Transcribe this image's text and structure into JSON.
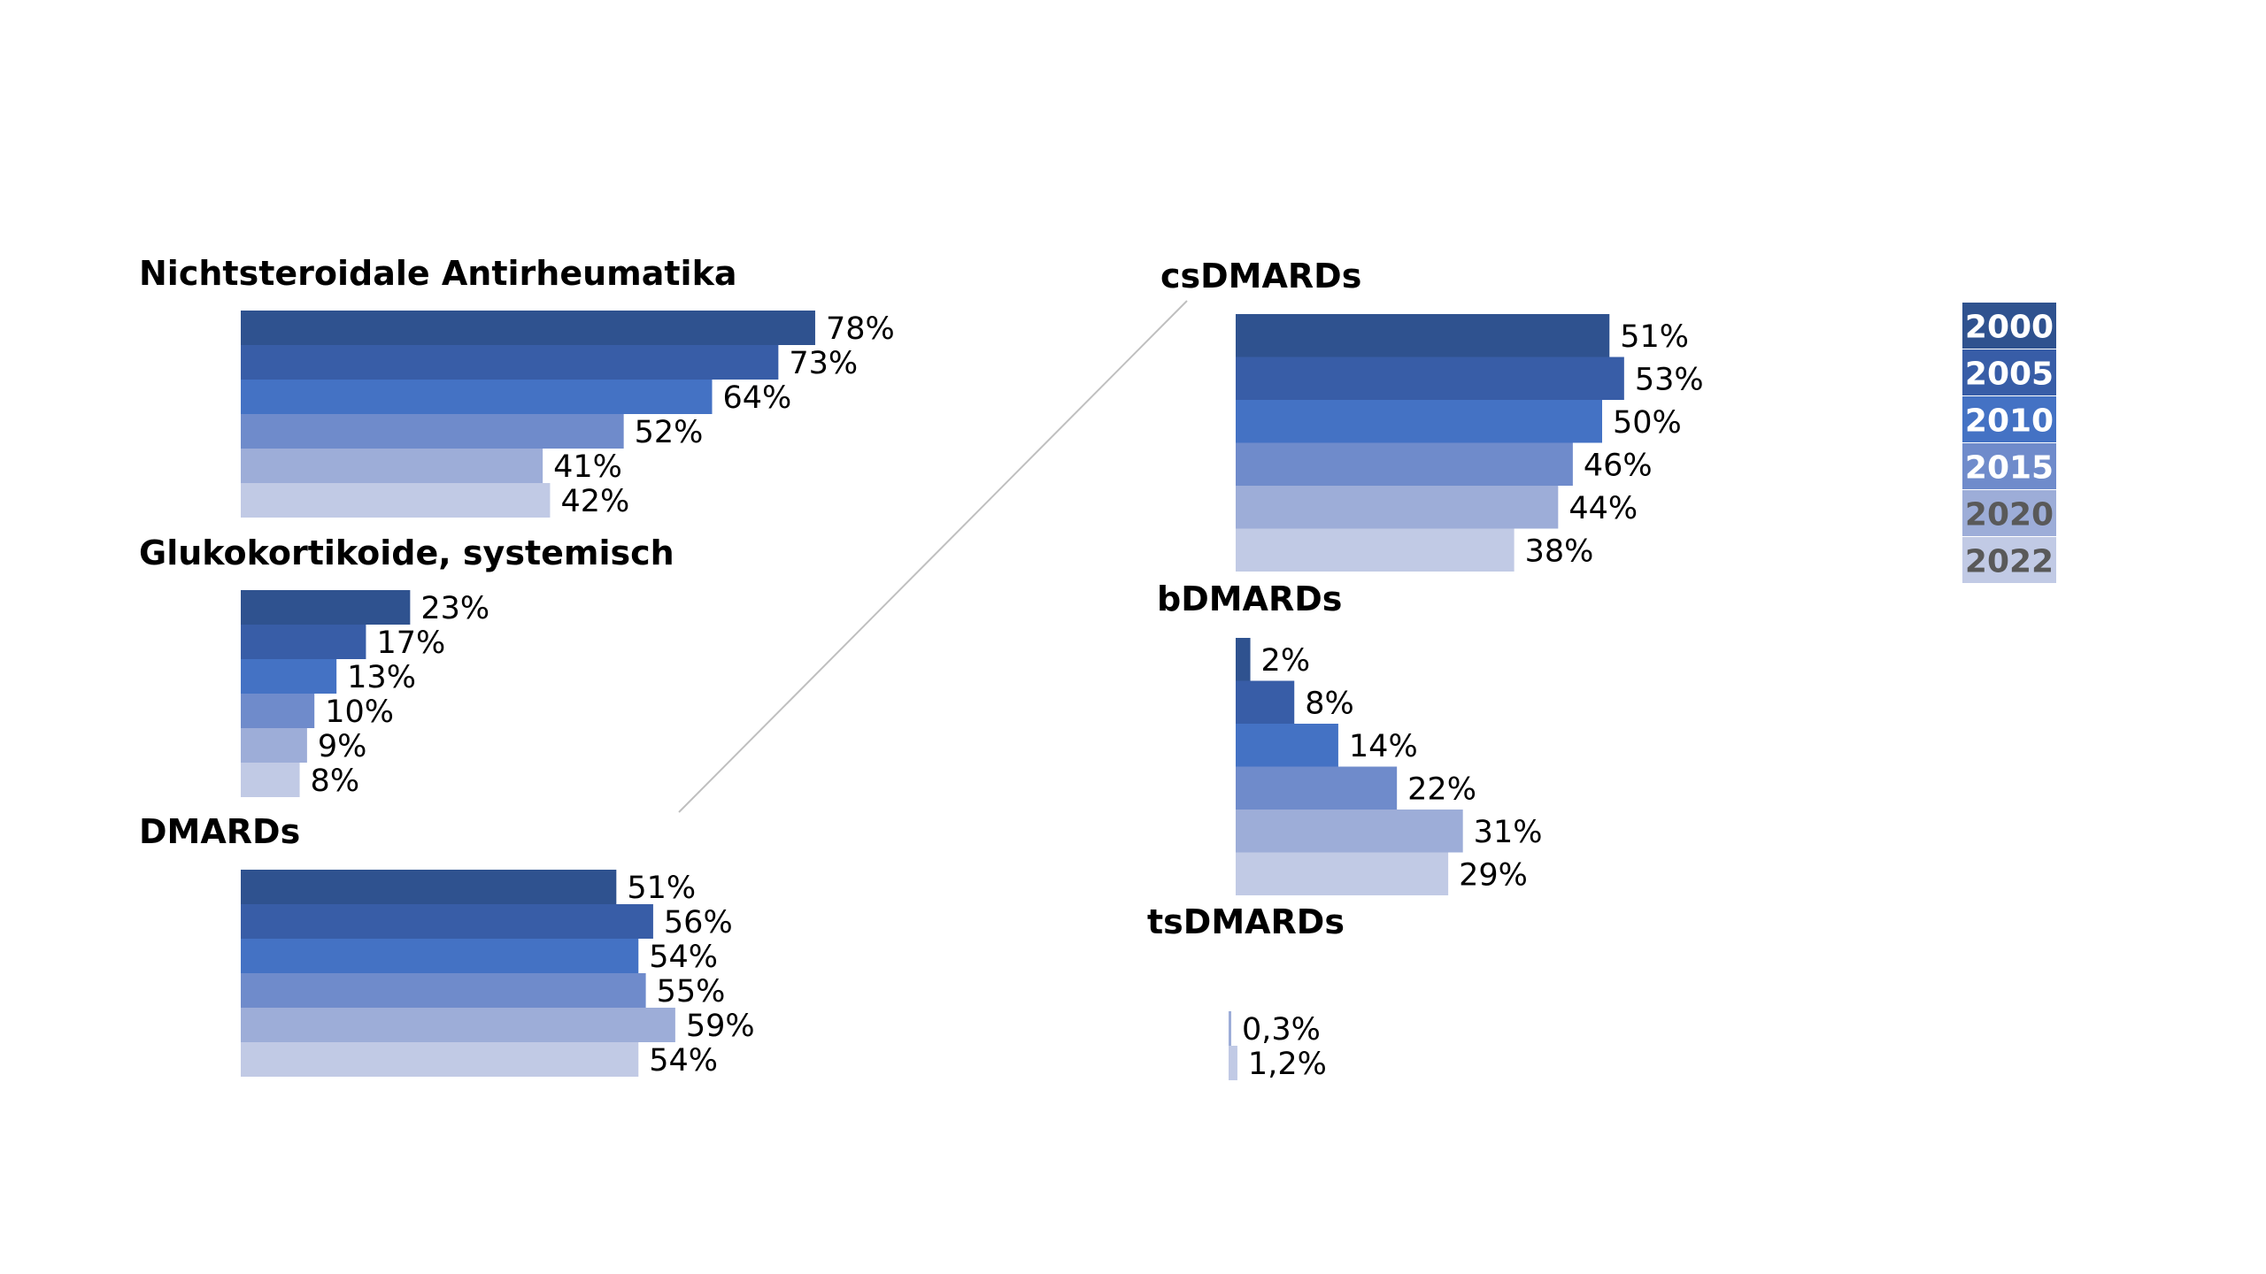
{
  "years": [
    "2000",
    "2005",
    "2010",
    "2015",
    "2020",
    "2022"
  ],
  "colors": [
    "#2f528f",
    "#385da7",
    "#4472c4",
    "#6f8bcb",
    "#9dadd8",
    "#c1cae5"
  ],
  "legend": {
    "items": [
      {
        "label": "2000",
        "color": "#2f528f",
        "text_color": "#ffffff"
      },
      {
        "label": "2005",
        "color": "#385da7",
        "text_color": "#ffffff"
      },
      {
        "label": "2010",
        "color": "#4472c4",
        "text_color": "#ffffff"
      },
      {
        "label": "2015",
        "color": "#6f8bcb",
        "text_color": "#ffffff"
      },
      {
        "label": "2020",
        "color": "#9dadd8",
        "text_color": "#595959"
      },
      {
        "label": "2022",
        "color": "#c1cae5",
        "text_color": "#595959"
      }
    ]
  },
  "chart_data": [
    {
      "type": "bar",
      "orientation": "horizontal",
      "title": "Nichtsteroidale Antirheumatika",
      "categories": [
        "2000",
        "2005",
        "2010",
        "2015",
        "2020",
        "2022"
      ],
      "values": [
        78,
        73,
        64,
        52,
        41,
        42
      ],
      "labels": [
        "78%",
        "73%",
        "64%",
        "52%",
        "41%",
        "42%"
      ]
    },
    {
      "type": "bar",
      "orientation": "horizontal",
      "title": "Glukokortikoide, systemisch",
      "categories": [
        "2000",
        "2005",
        "2010",
        "2015",
        "2020",
        "2022"
      ],
      "values": [
        23,
        17,
        13,
        10,
        9,
        8
      ],
      "labels": [
        "23%",
        "17%",
        "13%",
        "10%",
        "9%",
        "8%"
      ]
    },
    {
      "type": "bar",
      "orientation": "horizontal",
      "title": "DMARDs",
      "categories": [
        "2000",
        "2005",
        "2010",
        "2015",
        "2020",
        "2022"
      ],
      "values": [
        51,
        56,
        54,
        55,
        59,
        54
      ],
      "labels": [
        "51%",
        "56%",
        "54%",
        "55%",
        "59%",
        "54%"
      ]
    },
    {
      "type": "bar",
      "orientation": "horizontal",
      "title": "csDMARDs",
      "categories": [
        "2000",
        "2005",
        "2010",
        "2015",
        "2020",
        "2022"
      ],
      "values": [
        51,
        53,
        50,
        46,
        44,
        38
      ],
      "labels": [
        "51%",
        "53%",
        "50%",
        "46%",
        "44%",
        "38%"
      ]
    },
    {
      "type": "bar",
      "orientation": "horizontal",
      "title": "bDMARDs",
      "categories": [
        "2000",
        "2005",
        "2010",
        "2015",
        "2020",
        "2022"
      ],
      "values": [
        2,
        8,
        14,
        22,
        31,
        29
      ],
      "labels": [
        "2%",
        "8%",
        "14%",
        "22%",
        "31%",
        "29%"
      ]
    },
    {
      "type": "bar",
      "orientation": "horizontal",
      "title": "tsDMARDs",
      "categories": [
        "2020",
        "2022"
      ],
      "values": [
        0.3,
        1.2
      ],
      "labels": [
        "0,3%",
        "1,2%"
      ]
    }
  ]
}
